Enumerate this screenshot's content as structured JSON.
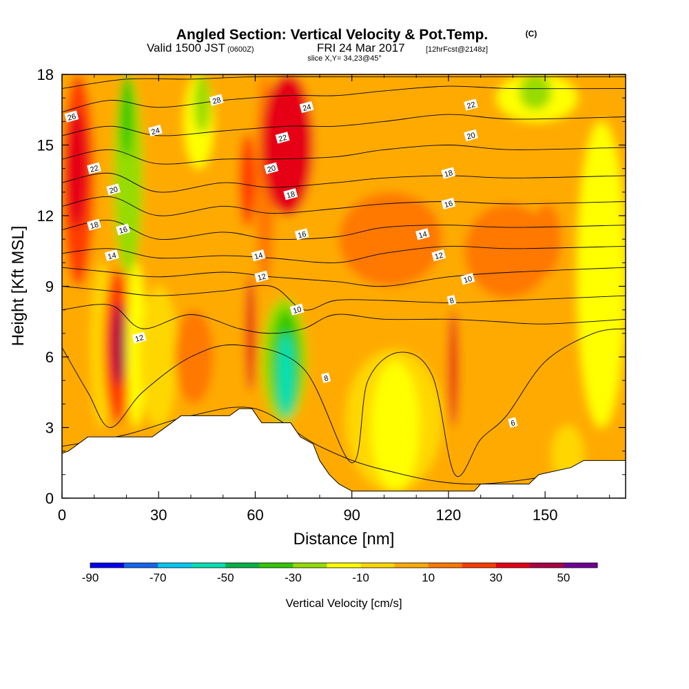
{
  "title": {
    "main": "Angled Section: Vertical Velocity & Pot.Temp.",
    "units": "(C)",
    "valid_prefix": "Valid 1500 JST",
    "valid_utc": "(0600Z)",
    "valid_date": "FRI 24 Mar 2017",
    "forecast": "[12hrFcst@2148z]",
    "slice": "slice X,Y= 34,23@45°"
  },
  "chart_data": {
    "type": "heatmap",
    "xlabel": "Distance [nm]",
    "ylabel": "Height [Kft MSL]",
    "xlim": [
      0,
      175
    ],
    "ylim": [
      0,
      18
    ],
    "x_ticks": [
      0,
      30,
      60,
      90,
      120,
      150
    ],
    "y_ticks": [
      0,
      3,
      6,
      9,
      12,
      15,
      18
    ],
    "colorbar": {
      "title": "Vertical Velocity [cm/s]",
      "min": -90,
      "max": 60,
      "step": 10,
      "tick_labels": [
        "-90",
        "-70",
        "-50",
        "-30",
        "-10",
        "10",
        "30",
        "50"
      ],
      "tick_values": [
        -90,
        -70,
        -50,
        -30,
        -10,
        10,
        30,
        50
      ],
      "colors": [
        "#0000ee",
        "#1466f0",
        "#00c8f5",
        "#00e0b4",
        "#00b446",
        "#32c800",
        "#96dc00",
        "#ffff00",
        "#ffd700",
        "#ffaa00",
        "#ff7800",
        "#ff3c00",
        "#e60014",
        "#aa0046",
        "#6e0096"
      ]
    },
    "terrain_kft": [
      [
        0,
        1.9
      ],
      [
        2,
        2.0
      ],
      [
        5,
        2.3
      ],
      [
        8,
        2.6
      ],
      [
        28,
        2.6
      ],
      [
        31,
        2.9
      ],
      [
        34,
        3.2
      ],
      [
        37,
        3.5
      ],
      [
        52,
        3.5
      ],
      [
        55,
        3.8
      ],
      [
        59,
        3.8
      ],
      [
        62,
        3.2
      ],
      [
        71,
        3.2
      ],
      [
        74,
        2.6
      ],
      [
        78,
        2.3
      ],
      [
        80,
        1.6
      ],
      [
        83,
        1.0
      ],
      [
        86,
        0.6
      ],
      [
        90,
        0.3
      ],
      [
        128,
        0.3
      ],
      [
        130,
        0.6
      ],
      [
        145,
        0.6
      ],
      [
        148,
        1.0
      ],
      [
        158,
        1.3
      ],
      [
        162,
        1.6
      ],
      [
        175,
        1.6
      ]
    ],
    "velocity_field": [
      {
        "x": 0,
        "y": 0,
        "w": 175,
        "h": 18,
        "v": 5
      },
      {
        "x": 0,
        "y": 12.5,
        "w": 175,
        "h": 5.5,
        "v": 8
      },
      {
        "x": 0,
        "y": 9,
        "w": 10,
        "h": 9,
        "v": 25
      },
      {
        "x": 1,
        "y": 11.5,
        "w": 7,
        "h": 5,
        "v": 35
      },
      {
        "x": 9,
        "y": 3,
        "w": 7,
        "h": 7,
        "v": -8
      },
      {
        "x": 13,
        "y": 3.2,
        "w": 8,
        "h": 6.5,
        "v": 28
      },
      {
        "x": 15.5,
        "y": 4.8,
        "w": 4.5,
        "h": 3.5,
        "v": 48
      },
      {
        "x": 16,
        "y": 9.5,
        "w": 9,
        "h": 8.5,
        "v": -22
      },
      {
        "x": 18,
        "y": 14.5,
        "w": 4,
        "h": 3.5,
        "v": -32
      },
      {
        "x": 20,
        "y": 3,
        "w": 6,
        "h": 7,
        "v": -18
      },
      {
        "x": 24,
        "y": 3,
        "w": 12,
        "h": 6,
        "v": -8
      },
      {
        "x": 35,
        "y": 4,
        "w": 12,
        "h": 4,
        "v": 12
      },
      {
        "x": 38,
        "y": 14,
        "w": 9,
        "h": 4,
        "v": -18
      },
      {
        "x": 41,
        "y": 15.5,
        "w": 5,
        "h": 2.5,
        "v": -30
      },
      {
        "x": 55,
        "y": 11.5,
        "w": 5,
        "h": 4,
        "v": 28
      },
      {
        "x": 57,
        "y": 4.5,
        "w": 3,
        "h": 5,
        "v": 32
      },
      {
        "x": 60,
        "y": 9,
        "w": 6,
        "h": 9,
        "v": 15
      },
      {
        "x": 62,
        "y": 12,
        "w": 16,
        "h": 6,
        "v": 30
      },
      {
        "x": 64,
        "y": 14,
        "w": 13,
        "h": 4,
        "v": 38
      },
      {
        "x": 62,
        "y": 3.2,
        "w": 14,
        "h": 5.3,
        "v": -22
      },
      {
        "x": 65,
        "y": 3.5,
        "w": 9,
        "h": 4.5,
        "v": -35
      },
      {
        "x": 67,
        "y": 3.5,
        "w": 5,
        "h": 3.5,
        "v": -55
      },
      {
        "x": 86,
        "y": 9,
        "w": 32,
        "h": 4,
        "v": 14
      },
      {
        "x": 88,
        "y": 0.3,
        "w": 30,
        "h": 6,
        "v": -8
      },
      {
        "x": 96,
        "y": 0.3,
        "w": 15,
        "h": 5.5,
        "v": -12
      },
      {
        "x": 120,
        "y": 3,
        "w": 3,
        "h": 5,
        "v": 30
      },
      {
        "x": 125,
        "y": 8.5,
        "w": 27,
        "h": 4,
        "v": 14
      },
      {
        "x": 146,
        "y": 9.5,
        "w": 9,
        "h": 3,
        "v": 18
      },
      {
        "x": 135,
        "y": 16,
        "w": 25,
        "h": 2,
        "v": -20
      },
      {
        "x": 142,
        "y": 16.5,
        "w": 10,
        "h": 1.5,
        "v": -30
      },
      {
        "x": 160,
        "y": 3,
        "w": 15,
        "h": 13,
        "v": -12
      },
      {
        "x": 152,
        "y": 0.6,
        "w": 10,
        "h": 2.5,
        "v": -8
      }
    ],
    "isentropes": [
      {
        "level": 4,
        "points": [
          [
            0,
            2.2
          ],
          [
            20,
            2.7
          ],
          [
            40,
            3.5
          ],
          [
            60,
            3.8
          ],
          [
            80,
            2.2
          ],
          [
            100,
            1.2
          ],
          [
            130,
            0.6
          ],
          [
            175,
            1.5
          ]
        ]
      },
      {
        "level": 6,
        "points": [
          [
            0,
            6.4
          ],
          [
            8,
            4.5
          ],
          [
            15,
            3.0
          ],
          [
            25,
            4.5
          ],
          [
            40,
            6.0
          ],
          [
            55,
            6.5
          ],
          [
            75,
            5.5
          ],
          [
            90,
            1.5
          ],
          [
            95,
            5.0
          ],
          [
            105,
            6.2
          ],
          [
            115,
            5.2
          ],
          [
            122,
            1.0
          ],
          [
            130,
            2.5
          ],
          [
            138,
            3.5
          ],
          [
            150,
            5.8
          ],
          [
            165,
            7.0
          ],
          [
            175,
            7.2
          ]
        ]
      },
      {
        "level": 8,
        "points": [
          [
            0,
            8.0
          ],
          [
            15,
            8.2
          ],
          [
            25,
            7.2
          ],
          [
            40,
            7.8
          ],
          [
            55,
            7.2
          ],
          [
            65,
            7.0
          ],
          [
            75,
            7.2
          ],
          [
            85,
            7.8
          ],
          [
            100,
            7.6
          ],
          [
            120,
            7.6
          ],
          [
            135,
            7.5
          ],
          [
            150,
            7.4
          ],
          [
            175,
            7.6
          ]
        ]
      },
      {
        "level": 10,
        "points": [
          [
            0,
            9.0
          ],
          [
            15,
            8.8
          ],
          [
            30,
            8.6
          ],
          [
            50,
            8.8
          ],
          [
            65,
            9.0
          ],
          [
            75,
            8.0
          ],
          [
            85,
            8.4
          ],
          [
            100,
            8.4
          ],
          [
            120,
            8.3
          ],
          [
            140,
            8.4
          ],
          [
            175,
            8.6
          ]
        ]
      },
      {
        "level": 12,
        "points": [
          [
            0,
            9.8
          ],
          [
            15,
            9.6
          ],
          [
            30,
            9.4
          ],
          [
            50,
            9.6
          ],
          [
            65,
            9.4
          ],
          [
            85,
            9.2
          ],
          [
            100,
            9.0
          ],
          [
            120,
            9.4
          ],
          [
            140,
            9.6
          ],
          [
            175,
            9.8
          ]
        ]
      },
      {
        "level": 14,
        "points": [
          [
            0,
            10.4
          ],
          [
            15,
            10.6
          ],
          [
            30,
            10.2
          ],
          [
            50,
            10.3
          ],
          [
            65,
            10.2
          ],
          [
            85,
            10.0
          ],
          [
            100,
            10.4
          ],
          [
            120,
            10.7
          ],
          [
            140,
            10.6
          ],
          [
            175,
            10.7
          ]
        ]
      },
      {
        "level": 16,
        "points": [
          [
            0,
            11.4
          ],
          [
            15,
            11.8
          ],
          [
            30,
            11.0
          ],
          [
            50,
            11.3
          ],
          [
            65,
            11.0
          ],
          [
            85,
            11.1
          ],
          [
            100,
            11.5
          ],
          [
            120,
            11.6
          ],
          [
            140,
            11.5
          ],
          [
            175,
            11.6
          ]
        ]
      },
      {
        "level": 18,
        "points": [
          [
            0,
            12.4
          ],
          [
            15,
            12.8
          ],
          [
            30,
            12.0
          ],
          [
            50,
            12.4
          ],
          [
            65,
            12.1
          ],
          [
            85,
            12.3
          ],
          [
            100,
            12.5
          ],
          [
            120,
            12.6
          ],
          [
            140,
            12.5
          ],
          [
            175,
            12.6
          ]
        ]
      },
      {
        "level": 20,
        "points": [
          [
            0,
            13.4
          ],
          [
            15,
            13.8
          ],
          [
            30,
            13.0
          ],
          [
            50,
            13.4
          ],
          [
            65,
            13.2
          ],
          [
            85,
            13.4
          ],
          [
            100,
            13.6
          ],
          [
            120,
            13.7
          ],
          [
            140,
            13.6
          ],
          [
            175,
            13.7
          ]
        ]
      },
      {
        "level": 22,
        "points": [
          [
            0,
            14.4
          ],
          [
            15,
            14.8
          ],
          [
            30,
            14.2
          ],
          [
            50,
            14.4
          ],
          [
            65,
            14.4
          ],
          [
            85,
            14.5
          ],
          [
            100,
            14.8
          ],
          [
            120,
            15.0
          ],
          [
            140,
            14.8
          ],
          [
            175,
            14.9
          ]
        ]
      },
      {
        "level": 24,
        "points": [
          [
            0,
            15.4
          ],
          [
            15,
            15.8
          ],
          [
            30,
            15.4
          ],
          [
            50,
            15.6
          ],
          [
            70,
            15.8
          ],
          [
            85,
            15.8
          ],
          [
            100,
            16.0
          ],
          [
            120,
            16.3
          ],
          [
            140,
            16.1
          ],
          [
            175,
            16.2
          ]
        ]
      },
      {
        "level": 26,
        "points": [
          [
            0,
            16.4
          ],
          [
            15,
            16.9
          ],
          [
            30,
            16.6
          ],
          [
            50,
            16.9
          ],
          [
            70,
            17.1
          ],
          [
            85,
            17.1
          ],
          [
            100,
            17.3
          ],
          [
            120,
            17.5
          ],
          [
            140,
            17.4
          ],
          [
            175,
            17.4
          ]
        ]
      },
      {
        "level": 28,
        "points": [
          [
            0,
            17.4
          ],
          [
            20,
            17.8
          ],
          [
            40,
            17.8
          ],
          [
            60,
            17.9
          ],
          [
            90,
            17.9
          ],
          [
            175,
            17.9
          ]
        ]
      }
    ],
    "contour_labels": [
      {
        "text": "26",
        "x": 3,
        "y": 16.2
      },
      {
        "text": "22",
        "x": 10,
        "y": 14.0
      },
      {
        "text": "20",
        "x": 16,
        "y": 13.1
      },
      {
        "text": "18",
        "x": 10,
        "y": 11.6
      },
      {
        "text": "16",
        "x": 19,
        "y": 11.4
      },
      {
        "text": "14",
        "x": 15.5,
        "y": 10.3
      },
      {
        "text": "12",
        "x": 24,
        "y": 6.8
      },
      {
        "text": "24",
        "x": 29,
        "y": 15.6
      },
      {
        "text": "28",
        "x": 48,
        "y": 16.9
      },
      {
        "text": "24",
        "x": 76,
        "y": 16.6
      },
      {
        "text": "22",
        "x": 68.5,
        "y": 15.3
      },
      {
        "text": "20",
        "x": 65,
        "y": 14.0
      },
      {
        "text": "18",
        "x": 71,
        "y": 12.9
      },
      {
        "text": "16",
        "x": 74.5,
        "y": 11.2
      },
      {
        "text": "14",
        "x": 61,
        "y": 10.3
      },
      {
        "text": "12",
        "x": 62,
        "y": 9.4
      },
      {
        "text": "10",
        "x": 73,
        "y": 8.0
      },
      {
        "text": "8",
        "x": 82,
        "y": 5.1
      },
      {
        "text": "22",
        "x": 127,
        "y": 16.7
      },
      {
        "text": "20",
        "x": 127,
        "y": 15.4
      },
      {
        "text": "18",
        "x": 120,
        "y": 13.8
      },
      {
        "text": "16",
        "x": 120,
        "y": 12.5
      },
      {
        "text": "14",
        "x": 112,
        "y": 11.2
      },
      {
        "text": "12",
        "x": 117,
        "y": 10.3
      },
      {
        "text": "10",
        "x": 126,
        "y": 9.3
      },
      {
        "text": "8",
        "x": 121,
        "y": 8.4
      },
      {
        "text": "6",
        "x": 140,
        "y": 3.2
      }
    ]
  }
}
